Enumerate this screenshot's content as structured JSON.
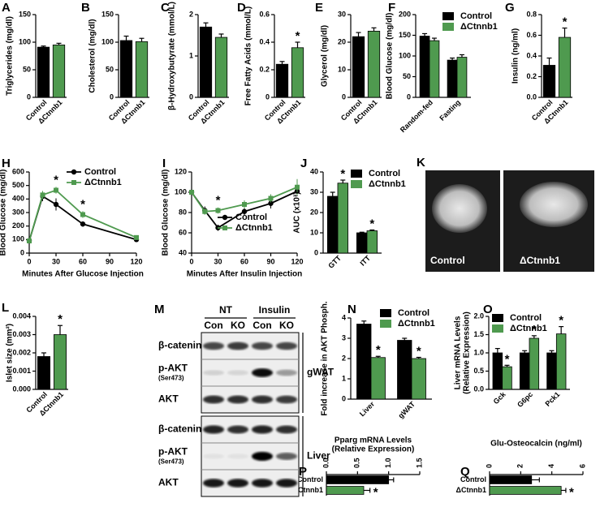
{
  "chart_data": [
    {
      "type": "bar",
      "label": "A",
      "ylabel": "Triglycerides (mg/dl)",
      "categories": [
        "Control",
        "ΔCtnnb1"
      ],
      "values": [
        91,
        95
      ],
      "errors": [
        2,
        3
      ],
      "colors": [
        "#000000",
        "#4f9a4f"
      ],
      "ylim": [
        0,
        150
      ],
      "yticks": [
        0,
        50,
        100,
        150
      ]
    },
    {
      "type": "bar",
      "label": "B",
      "ylabel": "Cholesterol (mg/dl)",
      "categories": [
        "Control",
        "ΔCtnnb1"
      ],
      "values": [
        103,
        101
      ],
      "errors": [
        8,
        6
      ],
      "colors": [
        "#000000",
        "#4f9a4f"
      ],
      "ylim": [
        0,
        150
      ],
      "yticks": [
        0,
        50,
        100,
        150
      ]
    },
    {
      "type": "bar",
      "label": "C",
      "ylabel": "β-Hydroxybutyrate (mmol/L)",
      "categories": [
        "Control",
        "ΔCtnnb1"
      ],
      "values": [
        1.7,
        1.45
      ],
      "errors": [
        0.1,
        0.08
      ],
      "colors": [
        "#000000",
        "#4f9a4f"
      ],
      "ylim": [
        0,
        2
      ],
      "yticks": [
        0,
        1,
        2
      ]
    },
    {
      "type": "bar",
      "label": "D",
      "ylabel": "Free Fatty Acids (mmol/L)",
      "categories": [
        "Control",
        "ΔCtnnb1"
      ],
      "values": [
        0.24,
        0.36
      ],
      "errors": [
        0.02,
        0.04
      ],
      "colors": [
        "#000000",
        "#4f9a4f"
      ],
      "significance": [
        null,
        "*"
      ],
      "ylim": [
        0,
        0.6
      ],
      "yticks": [
        0,
        0.2,
        0.4,
        0.6
      ]
    },
    {
      "type": "bar",
      "label": "E",
      "ylabel": "Glycerol (mg/dl)",
      "categories": [
        "Control",
        "ΔCtnnb1"
      ],
      "values": [
        22,
        24
      ],
      "errors": [
        1.5,
        1.2
      ],
      "colors": [
        "#000000",
        "#4f9a4f"
      ],
      "ylim": [
        0,
        30
      ],
      "yticks": [
        0,
        10,
        20,
        30
      ]
    },
    {
      "type": "groupbar",
      "label": "F",
      "ylabel": "Blood Glucose (mg/dl)",
      "categories": [
        "Random-fed",
        "Fasting"
      ],
      "series": [
        {
          "name": "Control",
          "color": "#000000",
          "values": [
            148,
            90
          ],
          "errors": [
            6,
            5
          ]
        },
        {
          "name": "ΔCtnnb1",
          "color": "#4f9a4f",
          "values": [
            137,
            97
          ],
          "errors": [
            6,
            6
          ]
        }
      ],
      "ylim": [
        0,
        200
      ],
      "yticks": [
        0,
        50,
        100,
        150,
        200
      ]
    },
    {
      "type": "bar",
      "label": "G",
      "ylabel": "Insulin (ng/ml)",
      "categories": [
        "Control",
        "ΔCtnnb1"
      ],
      "values": [
        0.31,
        0.58
      ],
      "errors": [
        0.07,
        0.09
      ],
      "colors": [
        "#000000",
        "#4f9a4f"
      ],
      "significance": [
        null,
        "*"
      ],
      "ylim": [
        0,
        0.8
      ],
      "yticks": [
        {
          "value": 0,
          "label": "0.0"
        },
        0.2,
        0.4,
        0.6,
        0.8
      ]
    },
    {
      "type": "line",
      "label": "H",
      "ylabel": "Blood Glucose (mg/dl)",
      "xlabel": "Minutes After Glucose Injection",
      "x": [
        0,
        15,
        30,
        60,
        120
      ],
      "series": [
        {
          "name": "Control",
          "color": "#000000",
          "values": [
            90,
            420,
            360,
            215,
            100
          ],
          "errors": [
            10,
            35,
            45,
            20,
            8
          ]
        },
        {
          "name": "ΔCtnnb1",
          "color": "#4f9a4f",
          "values": [
            90,
            430,
            465,
            285,
            115
          ],
          "errors": [
            10,
            30,
            25,
            25,
            10
          ],
          "significance": [
            null,
            null,
            "*",
            "*",
            null
          ]
        }
      ],
      "xlim": [
        0,
        120
      ],
      "xticks": [
        0,
        30,
        60,
        90,
        120
      ],
      "ylim": [
        0,
        600
      ],
      "yticks": [
        0,
        100,
        200,
        300,
        400,
        500,
        600
      ]
    },
    {
      "type": "line",
      "label": "I",
      "ylabel": "Blood Glucose (mg/dl)",
      "xlabel": "Minutes After Insulin Injection",
      "x": [
        0,
        15,
        30,
        60,
        90,
        120
      ],
      "series": [
        {
          "name": "Control",
          "color": "#000000",
          "values": [
            100,
            82,
            65,
            81,
            89,
            101
          ],
          "errors": [
            2,
            4,
            3,
            4,
            5,
            5
          ]
        },
        {
          "name": "ΔCtnnb1",
          "color": "#4f9a4f",
          "values": [
            100,
            81,
            82,
            88,
            94,
            105
          ],
          "errors": [
            2,
            3,
            3,
            4,
            4,
            8
          ],
          "significance": [
            null,
            null,
            "*",
            null,
            null,
            null
          ]
        }
      ],
      "xlim": [
        0,
        120
      ],
      "xticks": [
        0,
        30,
        60,
        90,
        120
      ],
      "ylim": [
        40,
        120
      ],
      "yticks": [
        40,
        60,
        80,
        100,
        120
      ]
    },
    {
      "type": "groupbar",
      "label": "J",
      "ylabel": "AUC (x10³)",
      "categories": [
        "GTT",
        "ITT"
      ],
      "series": [
        {
          "name": "Control",
          "color": "#000000",
          "values": [
            28,
            10
          ],
          "errors": [
            2,
            0.3
          ]
        },
        {
          "name": "ΔCtnnb1",
          "color": "#4f9a4f",
          "values": [
            34.5,
            11
          ],
          "errors": [
            1.5,
            0.4
          ],
          "significance": [
            "*",
            "*"
          ]
        }
      ],
      "ylim": [
        0,
        40
      ],
      "yticks": [
        0,
        10,
        20,
        30,
        40
      ]
    },
    {
      "type": "bar",
      "label": "L",
      "ylabel": "Islet size (mm²)",
      "categories": [
        "Control",
        "ΔCtnnb1"
      ],
      "values": [
        0.0018,
        0.003
      ],
      "errors": [
        0.0002,
        0.0005
      ],
      "colors": [
        "#000000",
        "#4f9a4f"
      ],
      "significance": [
        null,
        "*"
      ],
      "ylim": [
        0,
        0.004
      ],
      "yticks": [
        {
          "value": 0,
          "label": "0.000"
        },
        0.001,
        0.002,
        0.003,
        0.004
      ]
    },
    {
      "type": "groupbar",
      "label": "N",
      "ylabel": "Fold increase in AKT Phosph.",
      "categories": [
        "Liver",
        "gWAT"
      ],
      "series": [
        {
          "name": "Control",
          "color": "#000000",
          "values": [
            3.7,
            2.9
          ],
          "errors": [
            0.15,
            0.1
          ]
        },
        {
          "name": "ΔCtnnb1",
          "color": "#4f9a4f",
          "values": [
            2.05,
            2.0
          ],
          "errors": [
            0.06,
            0.06
          ],
          "significance": [
            "*",
            "*"
          ]
        }
      ],
      "ylim": [
        0,
        4
      ],
      "yticks": [
        0,
        1,
        2,
        3,
        4
      ]
    },
    {
      "type": "groupbar",
      "label": "O",
      "ylabel": [
        "Liver mRNA Levels",
        "(Relative Expression)"
      ],
      "categories": [
        "Gck",
        "G6pc",
        "Pck1"
      ],
      "series": [
        {
          "name": "Control",
          "color": "#000000",
          "values": [
            1.0,
            1.0,
            1.0
          ],
          "errors": [
            0.12,
            0.06,
            0.06
          ]
        },
        {
          "name": "ΔCtnnb1",
          "color": "#4f9a4f",
          "values": [
            0.62,
            1.4,
            1.52
          ],
          "errors": [
            0.04,
            0.07,
            0.2
          ],
          "significance": [
            "*",
            "*",
            "*"
          ]
        }
      ],
      "ylim": [
        0,
        2
      ],
      "yticks": [
        {
          "value": 0,
          "label": "0.0"
        },
        0.5,
        {
          "value": 1,
          "label": "1.0"
        },
        1.5,
        {
          "value": 2,
          "label": "2.0"
        }
      ]
    },
    {
      "type": "hbar",
      "label": "P",
      "title": [
        "Pparg mRNA Levels",
        "(Relative Expression)"
      ],
      "categories": [
        "Control",
        "ΔCtnnb1"
      ],
      "values": [
        1.0,
        0.6
      ],
      "errors": [
        0.08,
        0.1
      ],
      "colors": [
        "#000000",
        "#4f9a4f"
      ],
      "significance": [
        null,
        "*"
      ],
      "xlim": [
        0,
        1.5
      ],
      "xticks": [
        {
          "value": 0,
          "label": "0.0"
        },
        0.5,
        {
          "value": 1,
          "label": "1.0"
        },
        1.5
      ]
    },
    {
      "type": "hbar",
      "label": "Q",
      "title": [
        "Glu-Osteocalcin (ng/ml)"
      ],
      "categories": [
        "Control",
        "ΔCtnnb1"
      ],
      "values": [
        2.7,
        4.6
      ],
      "errors": [
        0.5,
        0.3
      ],
      "colors": [
        "#000000",
        "#4f9a4f"
      ],
      "significance": [
        null,
        "*"
      ],
      "xlim": [
        0,
        6
      ],
      "xticks": [
        0,
        2,
        4,
        6
      ]
    }
  ],
  "images": {
    "label": "K",
    "captions": [
      "Control",
      "ΔCtnnb1"
    ]
  },
  "blot": {
    "label": "M",
    "groups": [
      "NT",
      "Insulin"
    ],
    "lanes": [
      "Con",
      "KO",
      "Con",
      "KO"
    ],
    "tissues": [
      {
        "name": "gWAT",
        "rows": [
          {
            "name": "β-catenin"
          },
          {
            "name": "p-AKT",
            "detail": "(Ser473)"
          },
          {
            "name": "AKT"
          }
        ]
      },
      {
        "name": "Liver",
        "rows": [
          {
            "name": "β-catenin"
          },
          {
            "name": "p-AKT",
            "detail": "(Ser473)"
          },
          {
            "name": "AKT"
          }
        ]
      }
    ]
  }
}
